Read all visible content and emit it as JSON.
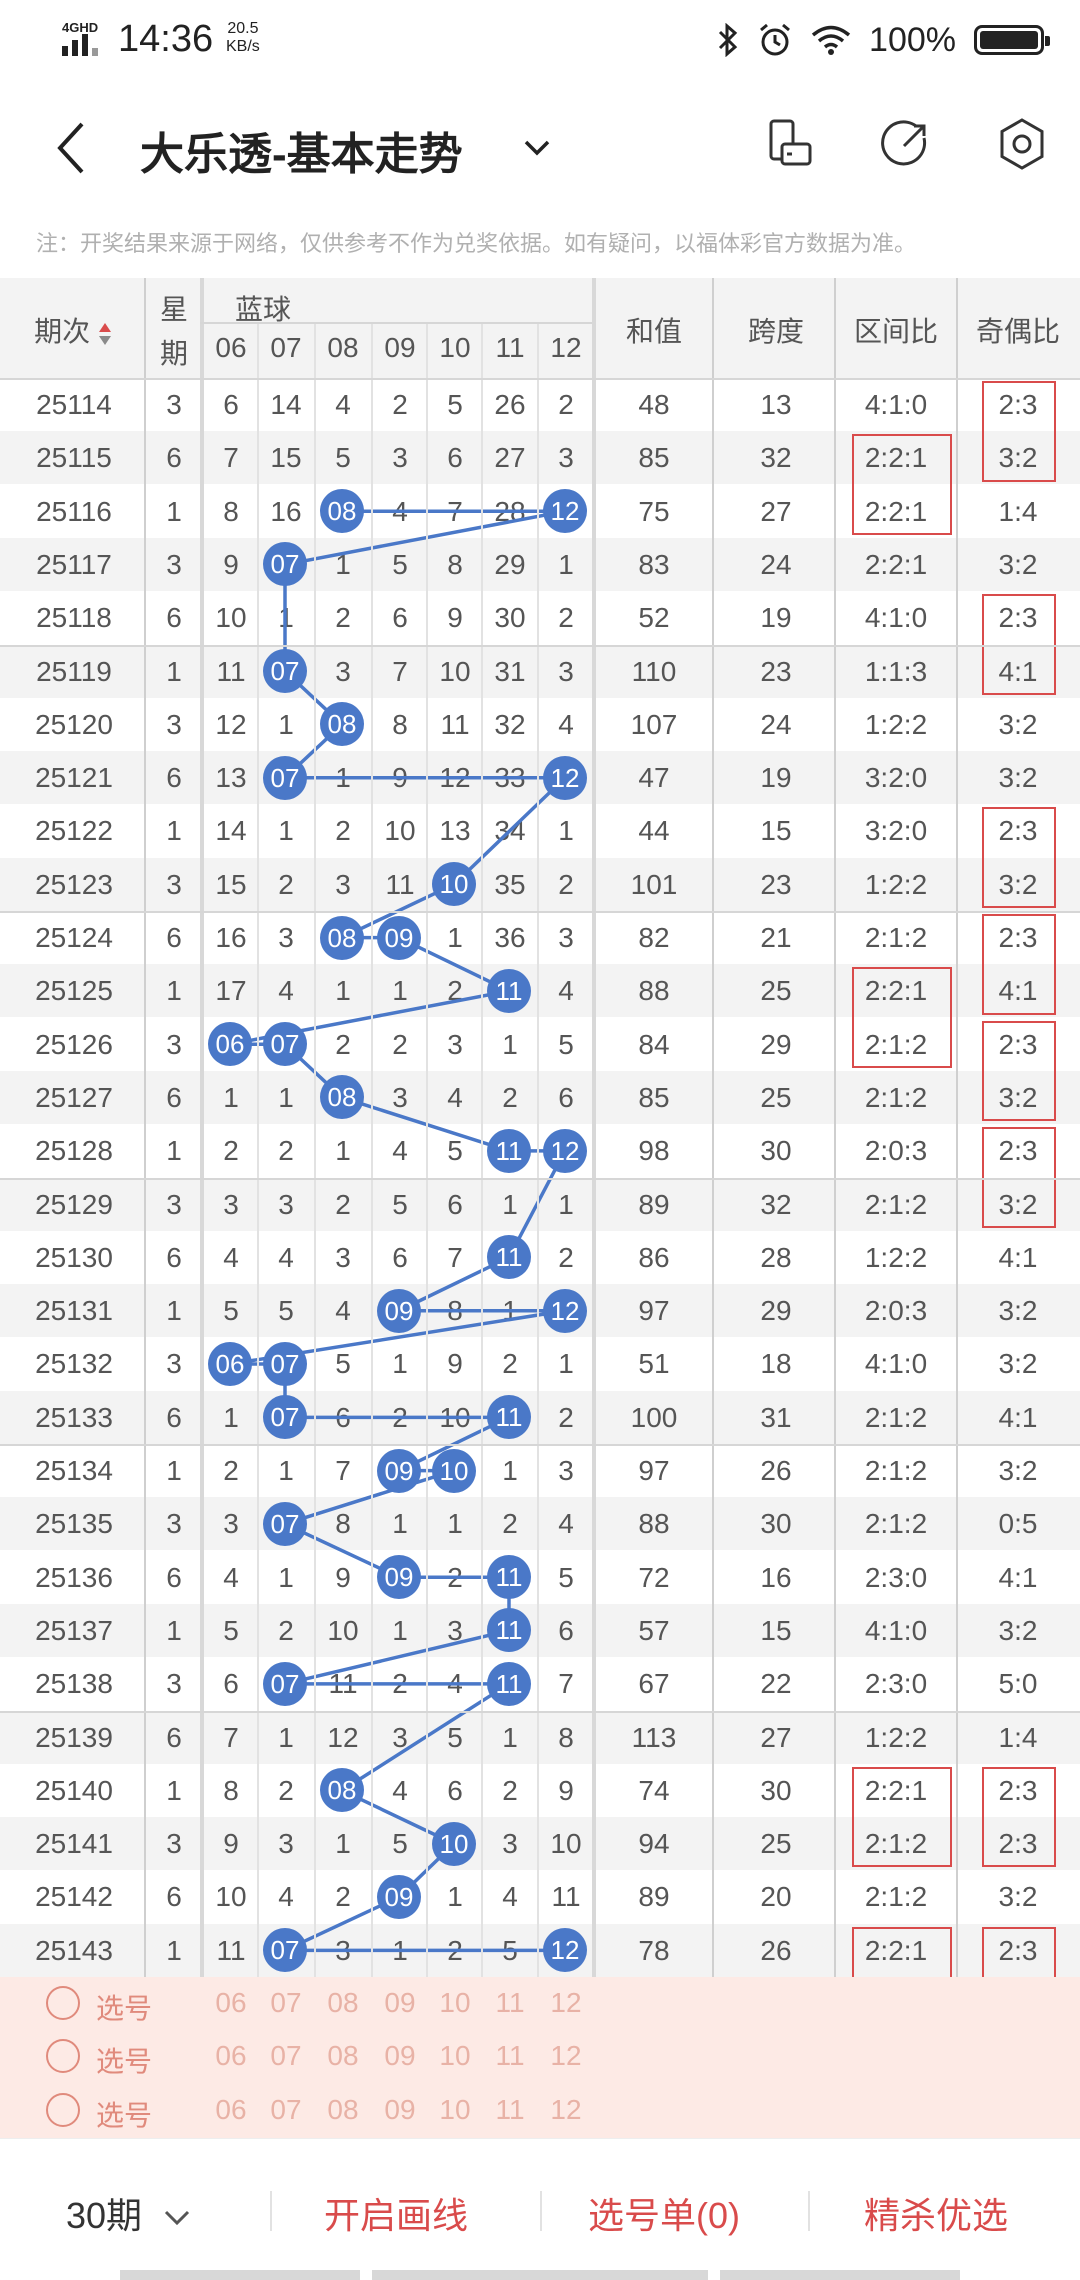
{
  "status_bar": {
    "network": "4GHD",
    "time": "14:36",
    "speed_value": "20.5",
    "speed_unit": "KB/s",
    "battery": "100%"
  },
  "header": {
    "title": "大乐透-基本走势",
    "back_icon": "chevron-left-icon",
    "dropdown_icon": "chevron-down-icon",
    "icons": [
      "phone-rotate-icon",
      "share-icon",
      "settings-icon"
    ]
  },
  "notice": "注：开奖结果来源于网络，仅供参考不作为兑奖依据。如有疑问，以福体彩官方数据为准。",
  "table": {
    "col_period": "期次",
    "col_weekday_1": "星",
    "col_weekday_2": "期",
    "col_blue": "蓝球",
    "blue_numbers": [
      "06",
      "07",
      "08",
      "09",
      "10",
      "11",
      "12"
    ],
    "col_sum": "和值",
    "col_span": "跨度",
    "col_zone": "区间比",
    "col_odd_even": "奇偶比",
    "sort_icon": "sort-arrows-icon",
    "ball_color": "#4a78c8",
    "highlight_color": "#d94b4b",
    "rows": [
      {
        "period": "25114",
        "weekday": "3",
        "cells": [
          "6",
          "14",
          "4",
          "2",
          "5",
          "26",
          "2"
        ],
        "hit": null,
        "sum": "48",
        "span": "13",
        "zone": "4:1:0",
        "oddeven": "2:3"
      },
      {
        "period": "25115",
        "weekday": "6",
        "cells": [
          "7",
          "15",
          "5",
          "3",
          "6",
          "27",
          "3"
        ],
        "hit": null,
        "sum": "85",
        "span": "32",
        "zone": "2:2:1",
        "oddeven": "3:2"
      },
      {
        "period": "25116",
        "weekday": "1",
        "cells": [
          "8",
          "16",
          "08",
          "4",
          "7",
          "28",
          "12"
        ],
        "hit": [
          2,
          6
        ],
        "sum": "75",
        "span": "27",
        "zone": "2:2:1",
        "oddeven": "1:4"
      },
      {
        "period": "25117",
        "weekday": "3",
        "cells": [
          "9",
          "07",
          "1",
          "5",
          "8",
          "29",
          "1"
        ],
        "hit": [
          1
        ],
        "sum": "83",
        "span": "24",
        "zone": "2:2:1",
        "oddeven": "3:2"
      },
      {
        "period": "25118",
        "weekday": "6",
        "cells": [
          "10",
          "1",
          "2",
          "6",
          "9",
          "30",
          "2"
        ],
        "hit": null,
        "sum": "52",
        "span": "19",
        "zone": "4:1:0",
        "oddeven": "2:3"
      },
      {
        "period": "25119",
        "weekday": "1",
        "cells": [
          "11",
          "07",
          "3",
          "7",
          "10",
          "31",
          "3"
        ],
        "hit": [
          1
        ],
        "sum": "110",
        "span": "23",
        "zone": "1:1:3",
        "oddeven": "4:1"
      },
      {
        "period": "25120",
        "weekday": "3",
        "cells": [
          "12",
          "1",
          "08",
          "8",
          "11",
          "32",
          "4"
        ],
        "hit": [
          2
        ],
        "sum": "107",
        "span": "24",
        "zone": "1:2:2",
        "oddeven": "3:2"
      },
      {
        "period": "25121",
        "weekday": "6",
        "cells": [
          "13",
          "07",
          "1",
          "9",
          "12",
          "33",
          "12"
        ],
        "hit": [
          1,
          6
        ],
        "sum": "47",
        "span": "19",
        "zone": "3:2:0",
        "oddeven": "3:2"
      },
      {
        "period": "25122",
        "weekday": "1",
        "cells": [
          "14",
          "1",
          "2",
          "10",
          "13",
          "34",
          "1"
        ],
        "hit": null,
        "sum": "44",
        "span": "15",
        "zone": "3:2:0",
        "oddeven": "2:3"
      },
      {
        "period": "25123",
        "weekday": "3",
        "cells": [
          "15",
          "2",
          "3",
          "11",
          "10",
          "35",
          "2"
        ],
        "hit": [
          4
        ],
        "sum": "101",
        "span": "23",
        "zone": "1:2:2",
        "oddeven": "3:2"
      },
      {
        "period": "25124",
        "weekday": "6",
        "cells": [
          "16",
          "3",
          "08",
          "09",
          "1",
          "36",
          "3"
        ],
        "hit": [
          2,
          3
        ],
        "sum": "82",
        "span": "21",
        "zone": "2:1:2",
        "oddeven": "2:3"
      },
      {
        "period": "25125",
        "weekday": "1",
        "cells": [
          "17",
          "4",
          "1",
          "1",
          "2",
          "11",
          "4"
        ],
        "hit": [
          5
        ],
        "sum": "88",
        "span": "25",
        "zone": "2:2:1",
        "oddeven": "4:1"
      },
      {
        "period": "25126",
        "weekday": "3",
        "cells": [
          "06",
          "07",
          "2",
          "2",
          "3",
          "1",
          "5"
        ],
        "hit": [
          0,
          1
        ],
        "sum": "84",
        "span": "29",
        "zone": "2:1:2",
        "oddeven": "2:3"
      },
      {
        "period": "25127",
        "weekday": "6",
        "cells": [
          "1",
          "1",
          "08",
          "3",
          "4",
          "2",
          "6"
        ],
        "hit": [
          2
        ],
        "sum": "85",
        "span": "25",
        "zone": "2:1:2",
        "oddeven": "3:2"
      },
      {
        "period": "25128",
        "weekday": "1",
        "cells": [
          "2",
          "2",
          "1",
          "4",
          "5",
          "11",
          "12"
        ],
        "hit": [
          5,
          6
        ],
        "sum": "98",
        "span": "30",
        "zone": "2:0:3",
        "oddeven": "2:3"
      },
      {
        "period": "25129",
        "weekday": "3",
        "cells": [
          "3",
          "3",
          "2",
          "5",
          "6",
          "1",
          "1"
        ],
        "hit": null,
        "sum": "89",
        "span": "32",
        "zone": "2:1:2",
        "oddeven": "3:2"
      },
      {
        "period": "25130",
        "weekday": "6",
        "cells": [
          "4",
          "4",
          "3",
          "6",
          "7",
          "11",
          "2"
        ],
        "hit": [
          5
        ],
        "sum": "86",
        "span": "28",
        "zone": "1:2:2",
        "oddeven": "4:1"
      },
      {
        "period": "25131",
        "weekday": "1",
        "cells": [
          "5",
          "5",
          "4",
          "09",
          "8",
          "1",
          "12"
        ],
        "hit": [
          3,
          6
        ],
        "sum": "97",
        "span": "29",
        "zone": "2:0:3",
        "oddeven": "3:2"
      },
      {
        "period": "25132",
        "weekday": "3",
        "cells": [
          "06",
          "07",
          "5",
          "1",
          "9",
          "2",
          "1"
        ],
        "hit": [
          0,
          1
        ],
        "sum": "51",
        "span": "18",
        "zone": "4:1:0",
        "oddeven": "3:2"
      },
      {
        "period": "25133",
        "weekday": "6",
        "cells": [
          "1",
          "07",
          "6",
          "2",
          "10",
          "11",
          "2"
        ],
        "hit": [
          1,
          5
        ],
        "sum": "100",
        "span": "31",
        "zone": "2:1:2",
        "oddeven": "4:1"
      },
      {
        "period": "25134",
        "weekday": "1",
        "cells": [
          "2",
          "1",
          "7",
          "09",
          "10",
          "1",
          "3"
        ],
        "hit": [
          3,
          4
        ],
        "sum": "97",
        "span": "26",
        "zone": "2:1:2",
        "oddeven": "3:2"
      },
      {
        "period": "25135",
        "weekday": "3",
        "cells": [
          "3",
          "07",
          "8",
          "1",
          "1",
          "2",
          "4"
        ],
        "hit": [
          1
        ],
        "sum": "88",
        "span": "30",
        "zone": "2:1:2",
        "oddeven": "0:5"
      },
      {
        "period": "25136",
        "weekday": "6",
        "cells": [
          "4",
          "1",
          "9",
          "09",
          "2",
          "11",
          "5"
        ],
        "hit": [
          3,
          5
        ],
        "sum": "72",
        "span": "16",
        "zone": "2:3:0",
        "oddeven": "4:1"
      },
      {
        "period": "25137",
        "weekday": "1",
        "cells": [
          "5",
          "2",
          "10",
          "1",
          "3",
          "11",
          "6"
        ],
        "hit": [
          5
        ],
        "sum": "57",
        "span": "15",
        "zone": "4:1:0",
        "oddeven": "3:2"
      },
      {
        "period": "25138",
        "weekday": "3",
        "cells": [
          "6",
          "07",
          "11",
          "2",
          "4",
          "11",
          "7"
        ],
        "hit": [
          1,
          5
        ],
        "sum": "67",
        "span": "22",
        "zone": "2:3:0",
        "oddeven": "5:0"
      },
      {
        "period": "25139",
        "weekday": "6",
        "cells": [
          "7",
          "1",
          "12",
          "3",
          "5",
          "1",
          "8"
        ],
        "hit": null,
        "sum": "113",
        "span": "27",
        "zone": "1:2:2",
        "oddeven": "1:4"
      },
      {
        "period": "25140",
        "weekday": "1",
        "cells": [
          "8",
          "2",
          "08",
          "4",
          "6",
          "2",
          "9"
        ],
        "hit": [
          2
        ],
        "sum": "74",
        "span": "30",
        "zone": "2:2:1",
        "oddeven": "2:3"
      },
      {
        "period": "25141",
        "weekday": "3",
        "cells": [
          "9",
          "3",
          "1",
          "5",
          "10",
          "3",
          "10"
        ],
        "hit": [
          4
        ],
        "sum": "94",
        "span": "25",
        "zone": "2:1:2",
        "oddeven": "2:3"
      },
      {
        "period": "25142",
        "weekday": "6",
        "cells": [
          "10",
          "4",
          "2",
          "09",
          "1",
          "4",
          "11"
        ],
        "hit": [
          3
        ],
        "sum": "89",
        "span": "20",
        "zone": "2:1:2",
        "oddeven": "3:2"
      },
      {
        "period": "25143",
        "weekday": "1",
        "cells": [
          "11",
          "07",
          "3",
          "1",
          "2",
          "5",
          "12"
        ],
        "hit": [
          1,
          6
        ],
        "sum": "78",
        "span": "26",
        "zone": "2:2:1",
        "oddeven": "2:3"
      }
    ]
  },
  "pick_rows": {
    "label": "选号",
    "numbers": [
      "06",
      "07",
      "08",
      "09",
      "10",
      "11",
      "12"
    ]
  },
  "footer": {
    "period_select": "30期",
    "draw_lines": "开启画线",
    "pick_list": "选号单(0)",
    "premium": "精杀优选",
    "accent": "#d94b4b"
  }
}
